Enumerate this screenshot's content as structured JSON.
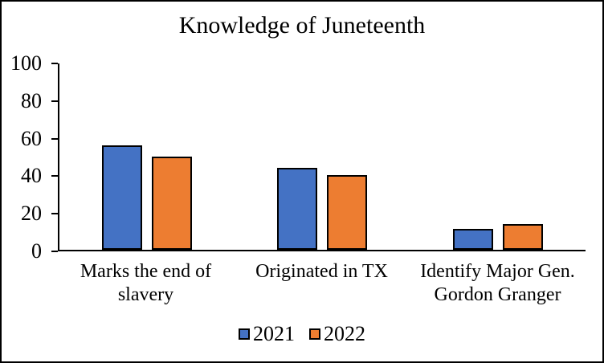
{
  "chart_data": {
    "type": "bar",
    "title": "Knowledge of Juneteenth",
    "categories": [
      "Marks the end of slavery",
      "Originated in TX",
      "Identify Major Gen. Gordon Granger"
    ],
    "series": [
      {
        "name": "2021",
        "color": "#4472C4",
        "values": [
          56,
          44,
          11
        ]
      },
      {
        "name": "2022",
        "color": "#ED7D31",
        "values": [
          50,
          40,
          14
        ]
      }
    ],
    "ylim": [
      0,
      100
    ],
    "yticks": [
      100,
      80,
      60,
      40,
      20,
      0
    ],
    "xlabel": "",
    "ylabel": "",
    "grid": false,
    "legend_position": "bottom",
    "bar_border_color": "#000000",
    "axis_color": "#000000",
    "background": "#FFFFFF",
    "frame_border_color": "#000000"
  }
}
